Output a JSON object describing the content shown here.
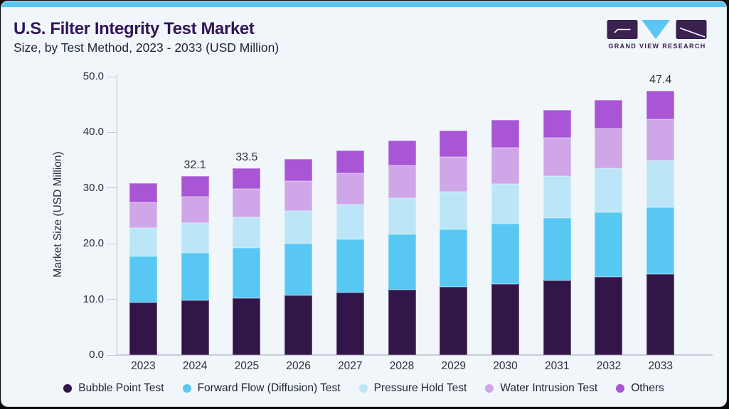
{
  "header": {
    "title": "U.S. Filter Integrity Test Market",
    "subtitle": "Size, by Test Method, 2023 - 2033 (USD Million)",
    "logo_text": "GRAND VIEW RESEARCH"
  },
  "colors": {
    "accent_strip": "#5bc6f1",
    "card_background": "#f0f6fa",
    "title_purple": "#331558",
    "logo_purple": "#3a2150",
    "logo_blue": "#5bc6f1"
  },
  "chart_data": {
    "type": "bar",
    "stacked": true,
    "title": "U.S. Filter Integrity Test Market Size, by Test Method, 2023 - 2033 (USD Million)",
    "categories": [
      "2023",
      "2024",
      "2025",
      "2026",
      "2027",
      "2028",
      "2029",
      "2030",
      "2031",
      "2032",
      "2033"
    ],
    "series": [
      {
        "name": "Bubble Point Test",
        "color": "#321549",
        "values": [
          9.4,
          9.8,
          10.2,
          10.7,
          11.2,
          11.7,
          12.2,
          12.8,
          13.4,
          14.0,
          14.5
        ]
      },
      {
        "name": "Forward Flow (Diffusion) Test",
        "color": "#58c8f3",
        "values": [
          8.3,
          8.6,
          9.0,
          9.3,
          9.6,
          10.0,
          10.4,
          10.8,
          11.2,
          11.6,
          12.0
        ]
      },
      {
        "name": "Pressure Hold Test",
        "color": "#bce5f8",
        "values": [
          5.1,
          5.3,
          5.6,
          5.9,
          6.2,
          6.5,
          6.8,
          7.2,
          7.6,
          8.0,
          8.4
        ]
      },
      {
        "name": "Water Intrusion Test",
        "color": "#cfa7e9",
        "values": [
          4.6,
          4.8,
          5.1,
          5.3,
          5.6,
          5.9,
          6.2,
          6.5,
          6.8,
          7.1,
          7.4
        ]
      },
      {
        "name": "Others",
        "color": "#a855d6",
        "values": [
          3.5,
          3.6,
          3.6,
          4.0,
          4.1,
          4.4,
          4.7,
          4.9,
          5.0,
          5.1,
          5.1
        ]
      }
    ],
    "totals": [
      30.9,
      32.1,
      33.5,
      35.2,
      36.7,
      38.5,
      40.3,
      42.2,
      44.0,
      45.8,
      47.4
    ],
    "total_labels": {
      "2024": "32.1",
      "2025": "33.5",
      "2033": "47.4"
    },
    "xlabel": "",
    "ylabel": "Market Size (USD Million)",
    "yticks": [
      "0.0",
      "10.0",
      "20.0",
      "30.0",
      "40.0",
      "50.0"
    ],
    "ylim": [
      0,
      50
    ],
    "grid": false,
    "legend_position": "bottom"
  }
}
